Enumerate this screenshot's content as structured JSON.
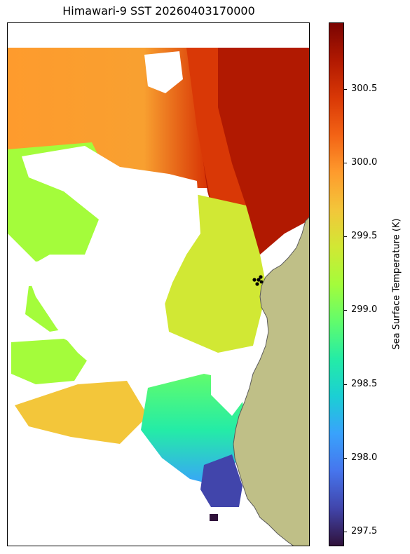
{
  "title": "Himawari-9 SST 20260403170000",
  "colorbar": {
    "label": "Sea Surface Temperature (K)",
    "min": 297.4,
    "max": 300.95,
    "ticks": [
      "297.5",
      "298.0",
      "298.5",
      "299.0",
      "299.5",
      "300.0",
      "300.5"
    ],
    "colormap": "turbo",
    "colors": [
      "#30123b",
      "#4145ab",
      "#4675ed",
      "#39a2fc",
      "#1bcfd4",
      "#24eca6",
      "#61fc6c",
      "#a4fc3b",
      "#d1e834",
      "#f3c63a",
      "#fe9b2d",
      "#f36315",
      "#d93806",
      "#b11901",
      "#7a0402"
    ]
  },
  "map": {
    "land_color": "#bfbf87",
    "station_markers": 5
  }
}
